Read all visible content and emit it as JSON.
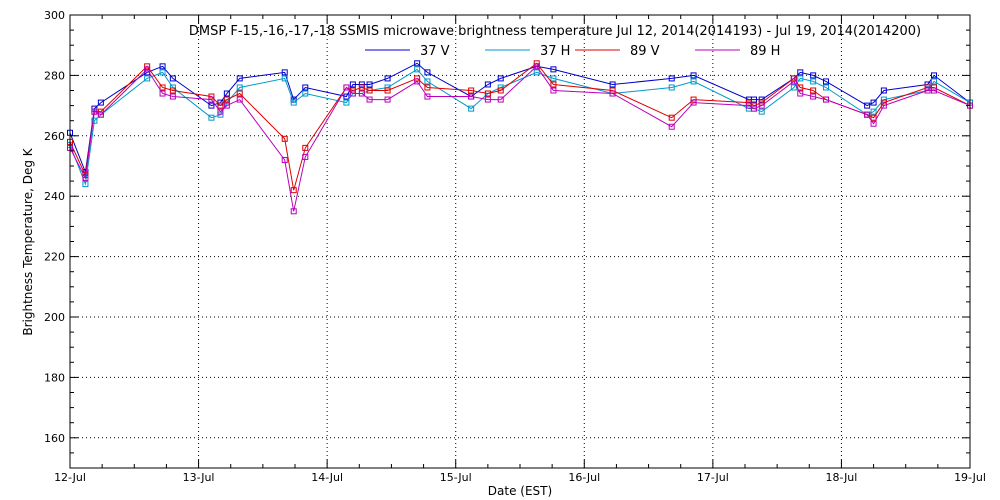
{
  "chart_data": {
    "type": "line",
    "title": "DMSP F-15,-16,-17,-18 SSMIS microwave brightness temperature Jul 12, 2014(2014193) - Jul 19, 2014(2014200)",
    "xlabel": "Date (EST)",
    "ylabel": "Brightness Temperature, Deg K",
    "xlim": [
      "12-Jul",
      "19-Jul"
    ],
    "ylim": [
      150,
      300
    ],
    "grid": true,
    "legend_position": "top",
    "x_ticks": [
      "12-Jul",
      "13-Jul",
      "14-Jul",
      "15-Jul",
      "16-Jul",
      "17-Jul",
      "18-Jul",
      "19-Jul"
    ],
    "y_ticks": [
      160,
      180,
      200,
      220,
      240,
      260,
      280,
      300
    ],
    "x_unit_note": "x values are days after 12-Jul 00:00",
    "series": [
      {
        "name": "37 V",
        "color": "#0000cc",
        "x": [
          0.0,
          0.12,
          0.19,
          0.24,
          0.6,
          0.72,
          0.8,
          1.1,
          1.17,
          1.22,
          1.32,
          1.67,
          1.74,
          1.83,
          2.15,
          2.2,
          2.27,
          2.33,
          2.47,
          2.7,
          2.78,
          3.12,
          3.25,
          3.35,
          3.63,
          3.76,
          4.22,
          4.68,
          4.85,
          5.28,
          5.32,
          5.38,
          5.63,
          5.68,
          5.78,
          5.88,
          6.2,
          6.25,
          6.33,
          6.67,
          6.72,
          7.0
        ],
        "y": [
          261,
          248,
          269,
          271,
          281,
          283,
          279,
          270,
          271,
          274,
          279,
          281,
          272,
          276,
          273,
          277,
          277,
          277,
          279,
          284,
          281,
          273,
          277,
          279,
          283,
          282,
          277,
          279,
          280,
          272,
          272,
          272,
          279,
          281,
          280,
          278,
          270,
          271,
          275,
          277,
          280,
          271
        ]
      },
      {
        "name": "37 H",
        "color": "#0099cc",
        "x": [
          0.0,
          0.12,
          0.19,
          0.24,
          0.6,
          0.72,
          0.8,
          1.1,
          1.17,
          1.22,
          1.32,
          1.67,
          1.74,
          1.83,
          2.15,
          2.2,
          2.27,
          2.33,
          2.47,
          2.7,
          2.78,
          3.12,
          3.25,
          3.35,
          3.63,
          3.76,
          4.22,
          4.68,
          4.85,
          5.28,
          5.32,
          5.38,
          5.63,
          5.68,
          5.78,
          5.88,
          6.2,
          6.25,
          6.33,
          6.67,
          6.72,
          7.0
        ],
        "y": [
          257,
          244,
          265,
          267,
          279,
          281,
          276,
          266,
          267,
          271,
          276,
          279,
          271,
          274,
          271,
          274,
          274,
          275,
          276,
          282,
          278,
          269,
          274,
          276,
          281,
          279,
          274,
          276,
          278,
          269,
          269,
          268,
          276,
          279,
          278,
          276,
          267,
          268,
          272,
          275,
          278,
          271
        ]
      },
      {
        "name": "89 V",
        "color": "#dd0000",
        "x": [
          0.0,
          0.12,
          0.19,
          0.24,
          0.6,
          0.72,
          0.8,
          1.1,
          1.17,
          1.22,
          1.32,
          1.67,
          1.74,
          1.83,
          2.15,
          2.2,
          2.27,
          2.33,
          2.47,
          2.7,
          2.78,
          3.12,
          3.25,
          3.35,
          3.63,
          3.76,
          4.22,
          4.68,
          4.85,
          5.28,
          5.32,
          5.38,
          5.63,
          5.68,
          5.78,
          5.88,
          6.2,
          6.25,
          6.33,
          6.67,
          6.72,
          7.0
        ],
        "y": [
          258,
          247,
          268,
          268,
          283,
          276,
          275,
          273,
          270,
          272,
          274,
          259,
          242,
          256,
          276,
          275,
          276,
          275,
          275,
          279,
          276,
          275,
          274,
          275,
          284,
          277,
          275,
          266,
          272,
          271,
          270,
          271,
          279,
          276,
          275,
          272,
          267,
          266,
          271,
          276,
          276,
          270
        ]
      },
      {
        "name": "89 H",
        "color": "#bb00bb",
        "x": [
          0.0,
          0.12,
          0.19,
          0.24,
          0.6,
          0.72,
          0.8,
          1.1,
          1.17,
          1.22,
          1.32,
          1.67,
          1.74,
          1.83,
          2.15,
          2.2,
          2.27,
          2.33,
          2.47,
          2.7,
          2.78,
          3.12,
          3.25,
          3.35,
          3.63,
          3.76,
          4.22,
          4.68,
          4.85,
          5.28,
          5.32,
          5.38,
          5.63,
          5.68,
          5.78,
          5.88,
          6.2,
          6.25,
          6.33,
          6.67,
          6.72,
          7.0
        ],
        "y": [
          256,
          246,
          268,
          267,
          282,
          274,
          273,
          272,
          268,
          270,
          272,
          252,
          235,
          253,
          276,
          274,
          274,
          272,
          272,
          278,
          273,
          273,
          272,
          272,
          283,
          275,
          274,
          263,
          271,
          270,
          269,
          270,
          278,
          274,
          273,
          272,
          267,
          264,
          270,
          275,
          275,
          270
        ]
      }
    ]
  }
}
